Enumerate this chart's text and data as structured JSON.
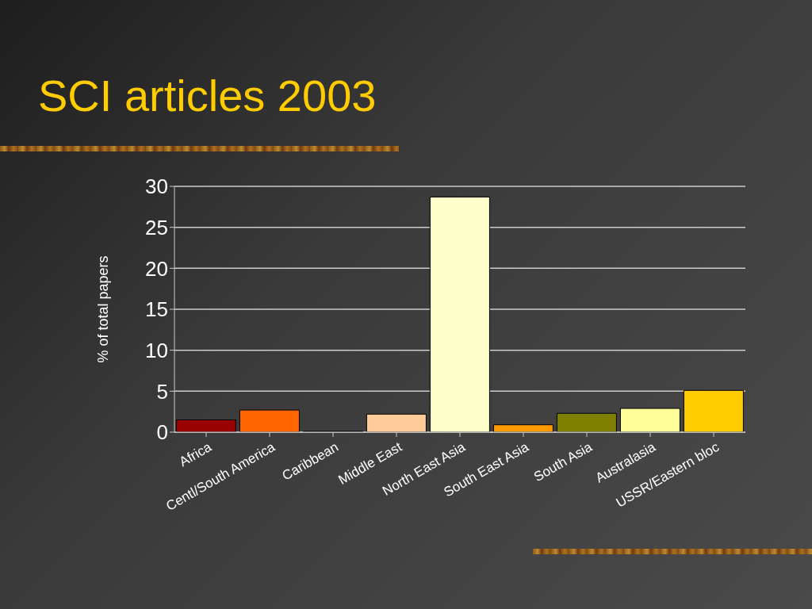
{
  "chart_data": {
    "type": "bar",
    "title": "SCI articles 2003",
    "ylabel": "% of total papers",
    "categories": [
      "Africa",
      "Centl/South America",
      "Caribbean",
      "Middle East",
      "North East Asia",
      "South East Asia",
      "South Asia",
      "Australasia",
      "USSR/Eastern bloc"
    ],
    "values": [
      1.5,
      2.7,
      0.1,
      2.2,
      28.7,
      0.9,
      2.3,
      2.9,
      5.1
    ],
    "colors": [
      "#990000",
      "#ff6600",
      "#666666",
      "#ffcc99",
      "#ffffcc",
      "#ff9900",
      "#808000",
      "#ffff99",
      "#ffcc00"
    ],
    "ylim": [
      0,
      30
    ],
    "yticks": [
      0,
      5,
      10,
      15,
      20,
      25,
      30
    ],
    "grid": "y",
    "legend": false
  }
}
